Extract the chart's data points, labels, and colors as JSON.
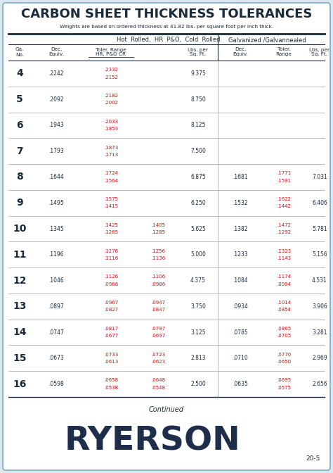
{
  "title": "CARBON SHEET THICKNESS TOLERANCES",
  "subtitle": "Weights are based on ordered thickness at 41.82 lbs. per square foot per inch thick.",
  "bg_color": "#dce8f0",
  "white": "#ffffff",
  "border_color": "#8fb8cc",
  "black_text": "#1a2a3a",
  "red_text": "#cc1111",
  "col_header_hr": "Hot  Rolled,  HR  P&O,  Cold  Rolled",
  "col_header_gal": "Galvanized /Galvannealed",
  "rows": [
    {
      "ga": "4",
      "dec_hr": ".2242",
      "tol_hr1": ".2332",
      "tol_hr2": ".2152",
      "tol_cr1": "",
      "tol_cr2": "",
      "lbs_hr": "9.375",
      "dec_gal": "",
      "tol_gal1": "",
      "tol_gal2": "",
      "lbs_gal": ""
    },
    {
      "ga": "5",
      "dec_hr": ".2092",
      "tol_hr1": ".2182",
      "tol_hr2": ".2002",
      "tol_cr1": "",
      "tol_cr2": "",
      "lbs_hr": "8.750",
      "dec_gal": "",
      "tol_gal1": "",
      "tol_gal2": "",
      "lbs_gal": ""
    },
    {
      "ga": "6",
      "dec_hr": ".1943",
      "tol_hr1": ".2033",
      "tol_hr2": ".1853",
      "tol_cr1": "",
      "tol_cr2": "",
      "lbs_hr": "8.125",
      "dec_gal": "",
      "tol_gal1": "",
      "tol_gal2": "",
      "lbs_gal": ""
    },
    {
      "ga": "7",
      "dec_hr": ".1793",
      "tol_hr1": ".1873",
      "tol_hr2": ".1713",
      "tol_cr1": "",
      "tol_cr2": "",
      "lbs_hr": "7.500",
      "dec_gal": "",
      "tol_gal1": "",
      "tol_gal2": "",
      "lbs_gal": ""
    },
    {
      "ga": "8",
      "dec_hr": ".1644",
      "tol_hr1": ".1724",
      "tol_hr2": ".1564",
      "tol_cr1": "",
      "tol_cr2": "",
      "lbs_hr": "6.875",
      "dec_gal": ".1681",
      "tol_gal1": ".1771",
      "tol_gal2": ".1591",
      "lbs_gal": "7.031"
    },
    {
      "ga": "9",
      "dec_hr": ".1495",
      "tol_hr1": ".1575",
      "tol_hr2": ".1415",
      "tol_cr1": "",
      "tol_cr2": "",
      "lbs_hr": "6.250",
      "dec_gal": ".1532",
      "tol_gal1": ".1622",
      "tol_gal2": ".1442",
      "lbs_gal": "6.406"
    },
    {
      "ga": "10",
      "dec_hr": ".1345",
      "tol_hr1": ".1425",
      "tol_hr2": ".1265",
      "tol_cr1": ".1405",
      "tol_cr2": ".1285",
      "lbs_hr": "5.625",
      "dec_gal": ".1382",
      "tol_gal1": ".1472",
      "tol_gal2": ".1292",
      "lbs_gal": "5.781"
    },
    {
      "ga": "11",
      "dec_hr": ".1196",
      "tol_hr1": ".1276",
      "tol_hr2": ".1116",
      "tol_cr1": ".1256",
      "tol_cr2": ".1136",
      "lbs_hr": "5.000",
      "dec_gal": ".1233",
      "tol_gal1": ".1323",
      "tol_gal2": ".1143",
      "lbs_gal": "5.156"
    },
    {
      "ga": "12",
      "dec_hr": ".1046",
      "tol_hr1": ".1126",
      "tol_hr2": ".0966",
      "tol_cr1": ".1106",
      "tol_cr2": ".0986",
      "lbs_hr": "4.375",
      "dec_gal": ".1084",
      "tol_gal1": ".1174",
      "tol_gal2": ".0994",
      "lbs_gal": "4.531"
    },
    {
      "ga": "13",
      "dec_hr": ".0897",
      "tol_hr1": ".0967",
      "tol_hr2": ".0827",
      "tol_cr1": ".0947",
      "tol_cr2": ".0847",
      "lbs_hr": "3.750",
      "dec_gal": ".0934",
      "tol_gal1": ".1014",
      "tol_gal2": ".0854",
      "lbs_gal": "3.906"
    },
    {
      "ga": "14",
      "dec_hr": ".0747",
      "tol_hr1": ".0817",
      "tol_hr2": ".0677",
      "tol_cr1": ".0797",
      "tol_cr2": ".0697",
      "lbs_hr": "3.125",
      "dec_gal": ".0785",
      "tol_gal1": ".0865",
      "tol_gal2": ".0705",
      "lbs_gal": "3.281"
    },
    {
      "ga": "15",
      "dec_hr": ".0673",
      "tol_hr1": ".0733",
      "tol_hr2": ".0613",
      "tol_cr1": ".0723",
      "tol_cr2": ".0623",
      "lbs_hr": "2.813",
      "dec_gal": ".0710",
      "tol_gal1": ".0770",
      "tol_gal2": ".0650",
      "lbs_gal": "2.969"
    },
    {
      "ga": "16",
      "dec_hr": ".0598",
      "tol_hr1": ".0658",
      "tol_hr2": ".0538",
      "tol_cr1": ".0648",
      "tol_cr2": ".0548",
      "lbs_hr": "2.500",
      "dec_gal": ".0635",
      "tol_gal1": ".0695",
      "tol_gal2": ".0575",
      "lbs_gal": "2.656"
    }
  ],
  "footer_text": "Continued",
  "logo_text": "RYERSON",
  "page_num": "20-5"
}
